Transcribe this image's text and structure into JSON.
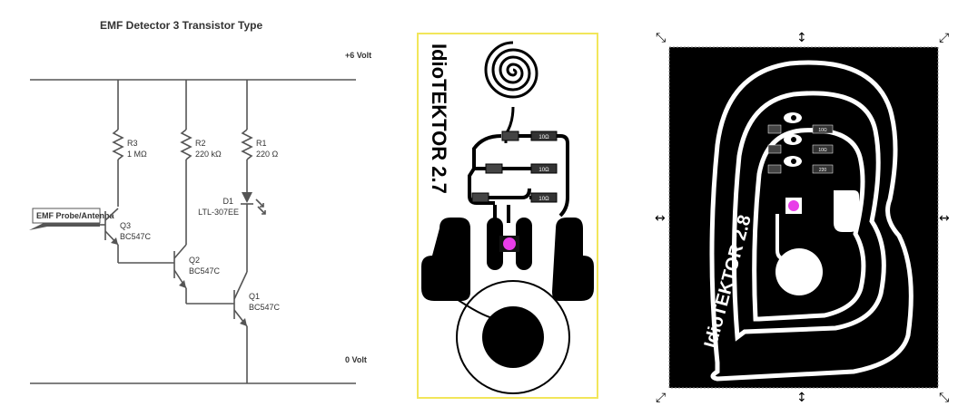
{
  "schematic": {
    "title": "EMF Detector 3 Transistor Type",
    "supply_label": "+6 Volt",
    "ground_label": "0 Volt",
    "probe_label": "EMF Probe/Antenna",
    "resistors": [
      {
        "name": "R3",
        "value": "1 MΩ"
      },
      {
        "name": "R2",
        "value": "220 kΩ"
      },
      {
        "name": "R1",
        "value": "220 Ω"
      }
    ],
    "led": {
      "name": "D1",
      "part": "LTL-307EE"
    },
    "transistors": [
      {
        "name": "Q3",
        "part": "BC547C"
      },
      {
        "name": "Q2",
        "part": "BC547C"
      },
      {
        "name": "Q1",
        "part": "BC547C"
      }
    ]
  },
  "pcb_v27": {
    "title": "IdioTEKTOR 2.7",
    "part_labels": [
      "10Ω",
      "10Ω",
      "10Ω"
    ],
    "highlight_color": "#e83de8",
    "border_color": "#f2e65a"
  },
  "pcb_v28": {
    "title": "IdioTEKTOR 2.8",
    "part_labels": [
      "10Ω",
      "10Ω",
      "220"
    ],
    "highlight_color": "#e83de8"
  },
  "colors": {
    "wire": "#555555",
    "board": "#000000"
  }
}
